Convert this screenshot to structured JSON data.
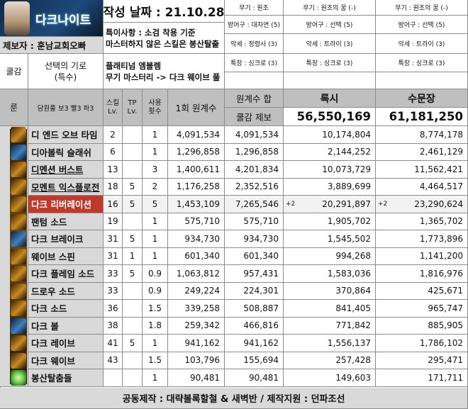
{
  "header": {
    "logo_text": "다크나이트",
    "date_label": "작성 날짜 : 21.10.28",
    "note_line1": "특이사항 : 소검 착용 기준",
    "note_line2": "마스터하지 않은 스킬은 봉산탈출",
    "reporter": "제보자 : 훈남교회오빠",
    "platinum_line1": "플래티넘 엠블렘",
    "platinum_line2": "무기 마스터리 -> 다크 웨이브 풀",
    "gear_sets": [
      {
        "weapon": "무기 : 원초",
        "armor": "방어구 : 대자연 (5)",
        "acc": "악세 : 정령사 (3)",
        "special": "특장 : 싱크로 (3)"
      },
      {
        "weapon": "무기 : 원초의 꿈 (-)",
        "armor": "방어구 : 선택 (5)",
        "acc": "악세 : 트라이 (3)",
        "special": "특장 : 싱크로 (3)"
      },
      {
        "weapon": "무기 : 원초의 꿈 (-)",
        "armor": "방어구 : 선택 (5)",
        "acc": "악세 : 트라이 (3)",
        "special": "특장 : 싱크로 (3)"
      }
    ]
  },
  "columns": {
    "awaken_label": "쿨감",
    "awaken_sub1": "선택의 기로",
    "awaken_sub2": "(특수)",
    "rune_label": "룬",
    "rune_detail": "담원풀 보3 빨3 파3",
    "skill_lv": "스킬 Lv.",
    "tp_lv": "TP Lv.",
    "use_count": "사용 횟수",
    "per_hit": "1회 원계수",
    "sum_label": "원계수 합",
    "cd_provider": "쿨감 제보",
    "set1_name": "록시",
    "set2_name": "수문장",
    "set1_total": "56,550,169",
    "set2_total": "61,181,250"
  },
  "rows": [
    {
      "name": "디 엔드 오브 타임",
      "lv": "2",
      "tp": "",
      "use": "1",
      "hit": "4,091,534",
      "sum": "4,091,534",
      "set1": "10,174,804",
      "set2": "8,774,178",
      "highlight": false,
      "underline": false,
      "icon": "dark-time-icon",
      "mark1": "",
      "mark2": ""
    },
    {
      "name": "디아볼릭 슬래쉬",
      "lv": "6",
      "tp": "",
      "use": "1",
      "hit": "1,296,858",
      "sum": "1,296,858",
      "set1": "2,144,252",
      "set2": "2,461,129",
      "highlight": false,
      "underline": false,
      "icon": "diabolic-slash-icon",
      "mark1": "",
      "mark2": ""
    },
    {
      "name": "디멘션 버스트",
      "lv": "13",
      "tp": "",
      "use": "3",
      "hit": "1,400,611",
      "sum": "4,201,834",
      "set1": "10,073,729",
      "set2": "11,562,421",
      "highlight": false,
      "underline": true,
      "icon": "dimension-burst-icon",
      "mark1": "",
      "mark2": ""
    },
    {
      "name": "모멘트 익스플로전",
      "lv": "18",
      "tp": "5",
      "use": "2",
      "hit": "1,176,258",
      "sum": "2,352,516",
      "set1": "3,889,699",
      "set2": "4,464,517",
      "highlight": false,
      "underline": true,
      "icon": "moment-explosion-icon",
      "mark1": "",
      "mark2": ""
    },
    {
      "name": "다크 리버레이션",
      "lv": "16",
      "tp": "5",
      "use": "5",
      "hit": "1,453,109",
      "sum": "7,265,546",
      "set1": "20,291,897",
      "set2": "23,290,624",
      "highlight": true,
      "underline": false,
      "icon": "dark-liberation-icon",
      "mark1": "+2",
      "mark2": "+2"
    },
    {
      "name": "팬텀 소드",
      "lv": "19",
      "tp": "",
      "use": "1",
      "hit": "575,710",
      "sum": "575,710",
      "set1": "1,905,702",
      "set2": "1,365,702",
      "highlight": false,
      "underline": false,
      "icon": "phantom-sword-icon",
      "mark1": "",
      "mark2": ""
    },
    {
      "name": "다크 브레이크",
      "lv": "31",
      "tp": "5",
      "use": "1",
      "hit": "934,730",
      "sum": "934,730",
      "set1": "1,545,502",
      "set2": "1,773,896",
      "highlight": false,
      "underline": false,
      "icon": "dark-break-icon",
      "mark1": "",
      "mark2": ""
    },
    {
      "name": "웨이브 스핀",
      "lv": "31",
      "tp": "1",
      "use": "1",
      "hit": "601,340",
      "sum": "601,340",
      "set1": "994,268",
      "set2": "1,141,200",
      "highlight": false,
      "underline": false,
      "icon": "wave-spin-icon",
      "mark1": "",
      "mark2": ""
    },
    {
      "name": "다크 플레임 소드",
      "lv": "33",
      "tp": "5",
      "use": "0.9",
      "hit": "1,063,812",
      "sum": "957,431",
      "set1": "1,583,036",
      "set2": "1,816,976",
      "highlight": false,
      "underline": false,
      "icon": "dark-flame-sword-icon",
      "mark1": "",
      "mark2": ""
    },
    {
      "name": "드로우 소드",
      "lv": "33",
      "tp": "",
      "use": "0.9",
      "hit": "249,224",
      "sum": "224,301",
      "set1": "370,864",
      "set2": "425,671",
      "highlight": false,
      "underline": false,
      "icon": "draw-sword-icon",
      "mark1": "",
      "mark2": ""
    },
    {
      "name": "다크 소드",
      "lv": "36",
      "tp": "",
      "use": "1.5",
      "hit": "339,258",
      "sum": "508,887",
      "set1": "841,405",
      "set2": "965,747",
      "highlight": false,
      "underline": false,
      "icon": "dark-sword-icon",
      "mark1": "",
      "mark2": ""
    },
    {
      "name": "다크 볼",
      "lv": "38",
      "tp": "",
      "use": "1.8",
      "hit": "259,342",
      "sum": "466,816",
      "set1": "771,842",
      "set2": "885,905",
      "highlight": false,
      "underline": false,
      "icon": "dark-ball-icon",
      "mark1": "",
      "mark2": ""
    },
    {
      "name": "다크 레이브",
      "lv": "41",
      "tp": "5",
      "use": "1",
      "hit": "941,162",
      "sum": "941,162",
      "set1": "1,556,137",
      "set2": "1,786,102",
      "highlight": false,
      "underline": false,
      "icon": "dark-rave-icon",
      "mark1": "",
      "mark2": ""
    },
    {
      "name": "다크 웨이브",
      "lv": "43",
      "tp": "",
      "use": "1.5",
      "hit": "103,796",
      "sum": "155,694",
      "set1": "257,428",
      "set2": "295,471",
      "highlight": false,
      "underline": false,
      "icon": "dark-wave-icon",
      "mark1": "",
      "mark2": ""
    },
    {
      "name": "봉산탈춤들",
      "lv": "",
      "tp": "",
      "use": "1",
      "hit": "90,481",
      "sum": "90,481",
      "set1": "149,603",
      "set2": "171,711",
      "highlight": false,
      "underline": false,
      "icon": "bongsan-icon",
      "mark1": "",
      "mark2": ""
    }
  ],
  "footer": "공동제작 : 대략볼록할철 & 새벽반 / 제작지원 : 던파조선",
  "colors": {
    "header_gray": "#bfbfbf",
    "highlight_red": "#c0392b",
    "light_gray": "#d9d9d9"
  }
}
